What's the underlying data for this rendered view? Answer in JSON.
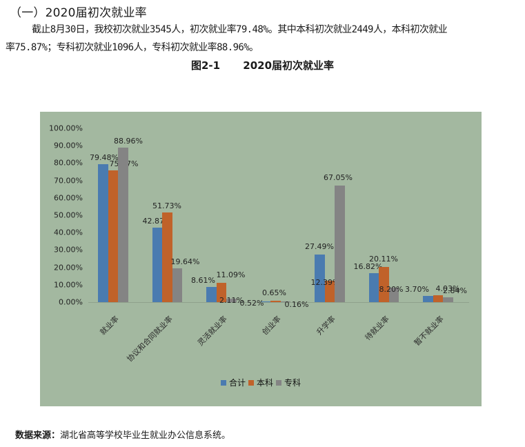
{
  "section": {
    "heading": "（一）2020届初次就业率"
  },
  "paragraph": {
    "line1": "截止8月30日，我校初次就业3545人，初次就业率79.48%。其中本科初次就业2449人，本科初次就业",
    "line2": "率75.87%；专科初次就业1096人，专科初次就业率88.96%。"
  },
  "figure": {
    "number": "图2-1",
    "title": "2020届初次就业率"
  },
  "colors": {
    "chart_bg": "#a3b8a0",
    "series": [
      "#4a7bb0",
      "#c0622a",
      "#848484"
    ]
  },
  "chart_data": {
    "type": "bar",
    "title": "2020届初次就业率",
    "xlabel": "",
    "ylabel": "",
    "ylim": [
      0,
      100
    ],
    "yticks": [
      "0.00%",
      "10.00%",
      "20.00%",
      "30.00%",
      "40.00%",
      "50.00%",
      "60.00%",
      "70.00%",
      "80.00%",
      "90.00%",
      "100.00%"
    ],
    "grid": false,
    "legend_position": "bottom",
    "categories": [
      "就业率",
      "协议和合同就业率",
      "灵活就业率",
      "创业率",
      "升学率",
      "待就业率",
      "暂不就业率"
    ],
    "series": [
      {
        "name": "合计",
        "values": [
          79.48,
          42.87,
          8.61,
          0.52,
          27.49,
          16.82,
          3.7
        ],
        "labels": [
          "79.48%",
          "42.87%",
          "8.61%",
          "0.52%",
          "27.49%",
          "16.82%",
          "3.70%"
        ]
      },
      {
        "name": "本科",
        "values": [
          75.87,
          51.73,
          11.09,
          0.65,
          12.39,
          20.11,
          4.03
        ],
        "labels": [
          "75.87%",
          "51.73%",
          "11.09%",
          "0.65%",
          "12.39%",
          "20.11%",
          "4.03%"
        ]
      },
      {
        "name": "专科",
        "values": [
          88.96,
          19.64,
          2.11,
          0.16,
          67.05,
          8.2,
          2.84
        ],
        "labels": [
          "88.96%",
          "19.64%",
          "2.11%",
          "0.16%",
          "67.05%",
          "8.20%",
          "2.84%"
        ]
      }
    ]
  },
  "legend": {
    "items": [
      "合计",
      "本科",
      "专科"
    ]
  },
  "source": {
    "label": "数据来源：",
    "text": "湖北省高等学校毕业生就业办公信息系统。"
  }
}
